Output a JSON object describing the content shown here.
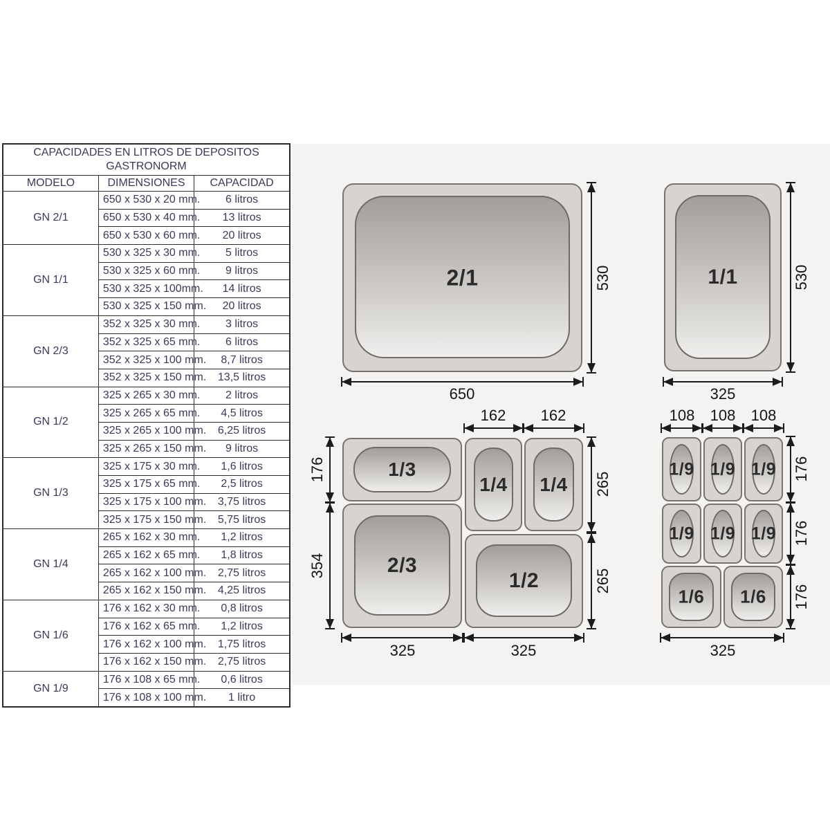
{
  "table": {
    "title_line1": "CAPACIDADES EN LITROS DE DEPOSITOS",
    "title_line2": "GASTRONORM",
    "headers": {
      "model": "MODELO",
      "dimensions": "DIMENSIONES",
      "capacity": "CAPACIDAD"
    },
    "groups": [
      {
        "model": "GN 2/1",
        "rows": [
          [
            "650 x 530 x 20 mm.",
            "6 litros"
          ],
          [
            "650 x 530 x 40 mm.",
            "13 litros"
          ],
          [
            "650 x 530 x 60 mm.",
            "20 litros"
          ]
        ]
      },
      {
        "model": "GN 1/1",
        "rows": [
          [
            "530 x 325 x 30 mm.",
            "5 litros"
          ],
          [
            "530 x 325 x 60 mm.",
            "9 litros"
          ],
          [
            "530 x 325 x 100mm.",
            "14 litros"
          ],
          [
            "530 x 325 x 150 mm.",
            "20 litros"
          ]
        ]
      },
      {
        "model": "GN 2/3",
        "rows": [
          [
            "352 x 325 x 30 mm.",
            "3 litros"
          ],
          [
            "352 x 325 x 65 mm.",
            "6 litros"
          ],
          [
            "352 x 325 x 100 mm.",
            "8,7 litros"
          ],
          [
            "352 x 325 x 150 mm.",
            "13,5 litros"
          ]
        ]
      },
      {
        "model": "GN 1/2",
        "rows": [
          [
            "325 x 265 x 30 mm.",
            "2 litros"
          ],
          [
            "325 x 265 x 65 mm.",
            "4,5 litros"
          ],
          [
            "325 x 265 x 100 mm.",
            "6,25 litros"
          ],
          [
            "325 x 265 x 150 mm.",
            "9 litros"
          ]
        ]
      },
      {
        "model": "GN 1/3",
        "rows": [
          [
            "325 x 175 x 30 mm.",
            "1,6 litros"
          ],
          [
            "325 x 175 x 65 mm.",
            "2,5 litros"
          ],
          [
            "325 x 175 x 100 mm.",
            "3,75 litros"
          ],
          [
            "325 x 175 x 150 mm.",
            "5,75 litros"
          ]
        ]
      },
      {
        "model": "GN 1/4",
        "rows": [
          [
            "265 x 162 x 30 mm.",
            "1,2 litros"
          ],
          [
            "265 x 162 x 65 mm.",
            "1,8 litros"
          ],
          [
            "265 x 162 x 100 mm.",
            "2,75 litros"
          ],
          [
            "265 x 162 x 150 mm.",
            "4,25 litros"
          ]
        ]
      },
      {
        "model": "GN 1/6",
        "rows": [
          [
            "176 x 162 x 30 mm.",
            "0,8 litros"
          ],
          [
            "176 x 162 x 65 mm.",
            "1,2 litros"
          ],
          [
            "176 x 162 x 100 mm.",
            "1,75 litros"
          ],
          [
            "176 x 162 x 150 mm.",
            "2,75 litros"
          ]
        ]
      },
      {
        "model": "GN 1/9",
        "rows": [
          [
            "176 x 108 x 65 mm.",
            "0,6 litros"
          ],
          [
            "176 x 108 x 100 mm.",
            "1 litro"
          ]
        ]
      }
    ]
  },
  "pans": {
    "gn21": "2/1",
    "gn11": "1/1",
    "gn13": "1/3",
    "gn14": "1/4",
    "gn23": "2/3",
    "gn12": "1/2",
    "gn19": "1/9",
    "gn16": "1/6"
  },
  "dims": {
    "d650": "650",
    "d530": "530",
    "d325": "325",
    "d162": "162",
    "d108": "108",
    "d176": "176",
    "d354": "354",
    "d265": "265"
  },
  "colors": {
    "panel_bg": "#f4f3f1",
    "table_text": "#3a3a58",
    "line": "#1c1c1c",
    "pan_rim": "#d6d3d0",
    "well_top": "#a29e9b",
    "well_bottom": "#efeeec"
  }
}
